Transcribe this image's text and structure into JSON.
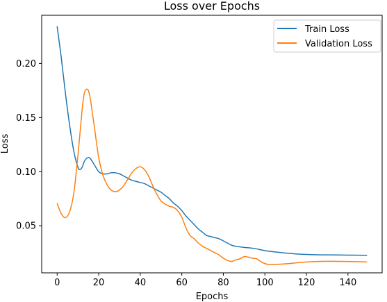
{
  "chart_data": {
    "type": "line",
    "title": "Loss over Epochs",
    "xlabel": "Epochs",
    "ylabel": "Loss",
    "xlim": [
      -7.45,
      156.45
    ],
    "ylim": [
      0.0065,
      0.2445
    ],
    "xticks": [
      0,
      20,
      40,
      60,
      80,
      100,
      120,
      140
    ],
    "xtick_labels": [
      "0",
      "20",
      "40",
      "60",
      "80",
      "100",
      "120",
      "140"
    ],
    "yticks": [
      0.05,
      0.1,
      0.15,
      0.2
    ],
    "ytick_labels": [
      "0.05",
      "0.10",
      "0.15",
      "0.20"
    ],
    "grid": false,
    "legend_position": "top-right",
    "series": [
      {
        "name": "Train Loss",
        "color": "#1f77b4",
        "x": [
          0,
          2,
          4,
          6,
          8,
          10,
          11,
          12,
          13,
          14,
          15,
          16,
          18,
          20,
          22,
          24,
          26,
          28,
          30,
          32,
          34,
          36,
          38,
          40,
          42,
          44,
          46,
          48,
          50,
          52,
          54,
          56,
          58,
          60,
          62,
          64,
          66,
          68,
          70,
          72,
          74,
          76,
          78,
          80,
          82,
          84,
          86,
          88,
          90,
          95,
          100,
          105,
          110,
          115,
          120,
          125,
          130,
          135,
          140,
          145,
          149
        ],
        "y": [
          0.234,
          0.205,
          0.172,
          0.143,
          0.119,
          0.104,
          0.102,
          0.104,
          0.109,
          0.112,
          0.113,
          0.112,
          0.106,
          0.1,
          0.098,
          0.098,
          0.099,
          0.099,
          0.098,
          0.096,
          0.094,
          0.092,
          0.091,
          0.09,
          0.089,
          0.087,
          0.085,
          0.083,
          0.081,
          0.078,
          0.075,
          0.071,
          0.068,
          0.064,
          0.059,
          0.055,
          0.051,
          0.047,
          0.044,
          0.041,
          0.04,
          0.039,
          0.038,
          0.036,
          0.034,
          0.032,
          0.031,
          0.0305,
          0.03,
          0.029,
          0.027,
          0.0258,
          0.0248,
          0.024,
          0.0235,
          0.0232,
          0.0231,
          0.023,
          0.0229,
          0.0228,
          0.0227
        ]
      },
      {
        "name": "Validation Loss",
        "color": "#ff7f0e",
        "x": [
          0,
          2,
          4,
          6,
          8,
          10,
          12,
          13,
          14,
          15,
          16,
          18,
          20,
          22,
          24,
          26,
          28,
          30,
          32,
          34,
          36,
          38,
          40,
          42,
          44,
          46,
          48,
          50,
          52,
          54,
          56,
          58,
          60,
          62,
          64,
          66,
          68,
          70,
          72,
          74,
          76,
          78,
          80,
          82,
          84,
          86,
          88,
          90,
          92,
          94,
          96,
          98,
          100,
          102,
          105,
          110,
          115,
          120,
          125,
          130,
          135,
          140,
          145,
          149
        ],
        "y": [
          0.0705,
          0.061,
          0.0575,
          0.063,
          0.08,
          0.115,
          0.157,
          0.172,
          0.176,
          0.175,
          0.167,
          0.14,
          0.113,
          0.097,
          0.088,
          0.083,
          0.0815,
          0.083,
          0.087,
          0.093,
          0.099,
          0.103,
          0.1045,
          0.102,
          0.096,
          0.087,
          0.079,
          0.073,
          0.07,
          0.068,
          0.067,
          0.064,
          0.058,
          0.048,
          0.041,
          0.038,
          0.034,
          0.031,
          0.029,
          0.027,
          0.025,
          0.023,
          0.02,
          0.018,
          0.017,
          0.0185,
          0.0195,
          0.0215,
          0.021,
          0.02,
          0.0195,
          0.017,
          0.015,
          0.0143,
          0.0143,
          0.0148,
          0.0157,
          0.0165,
          0.017,
          0.0172,
          0.0171,
          0.017,
          0.0168,
          0.0166
        ]
      }
    ]
  }
}
